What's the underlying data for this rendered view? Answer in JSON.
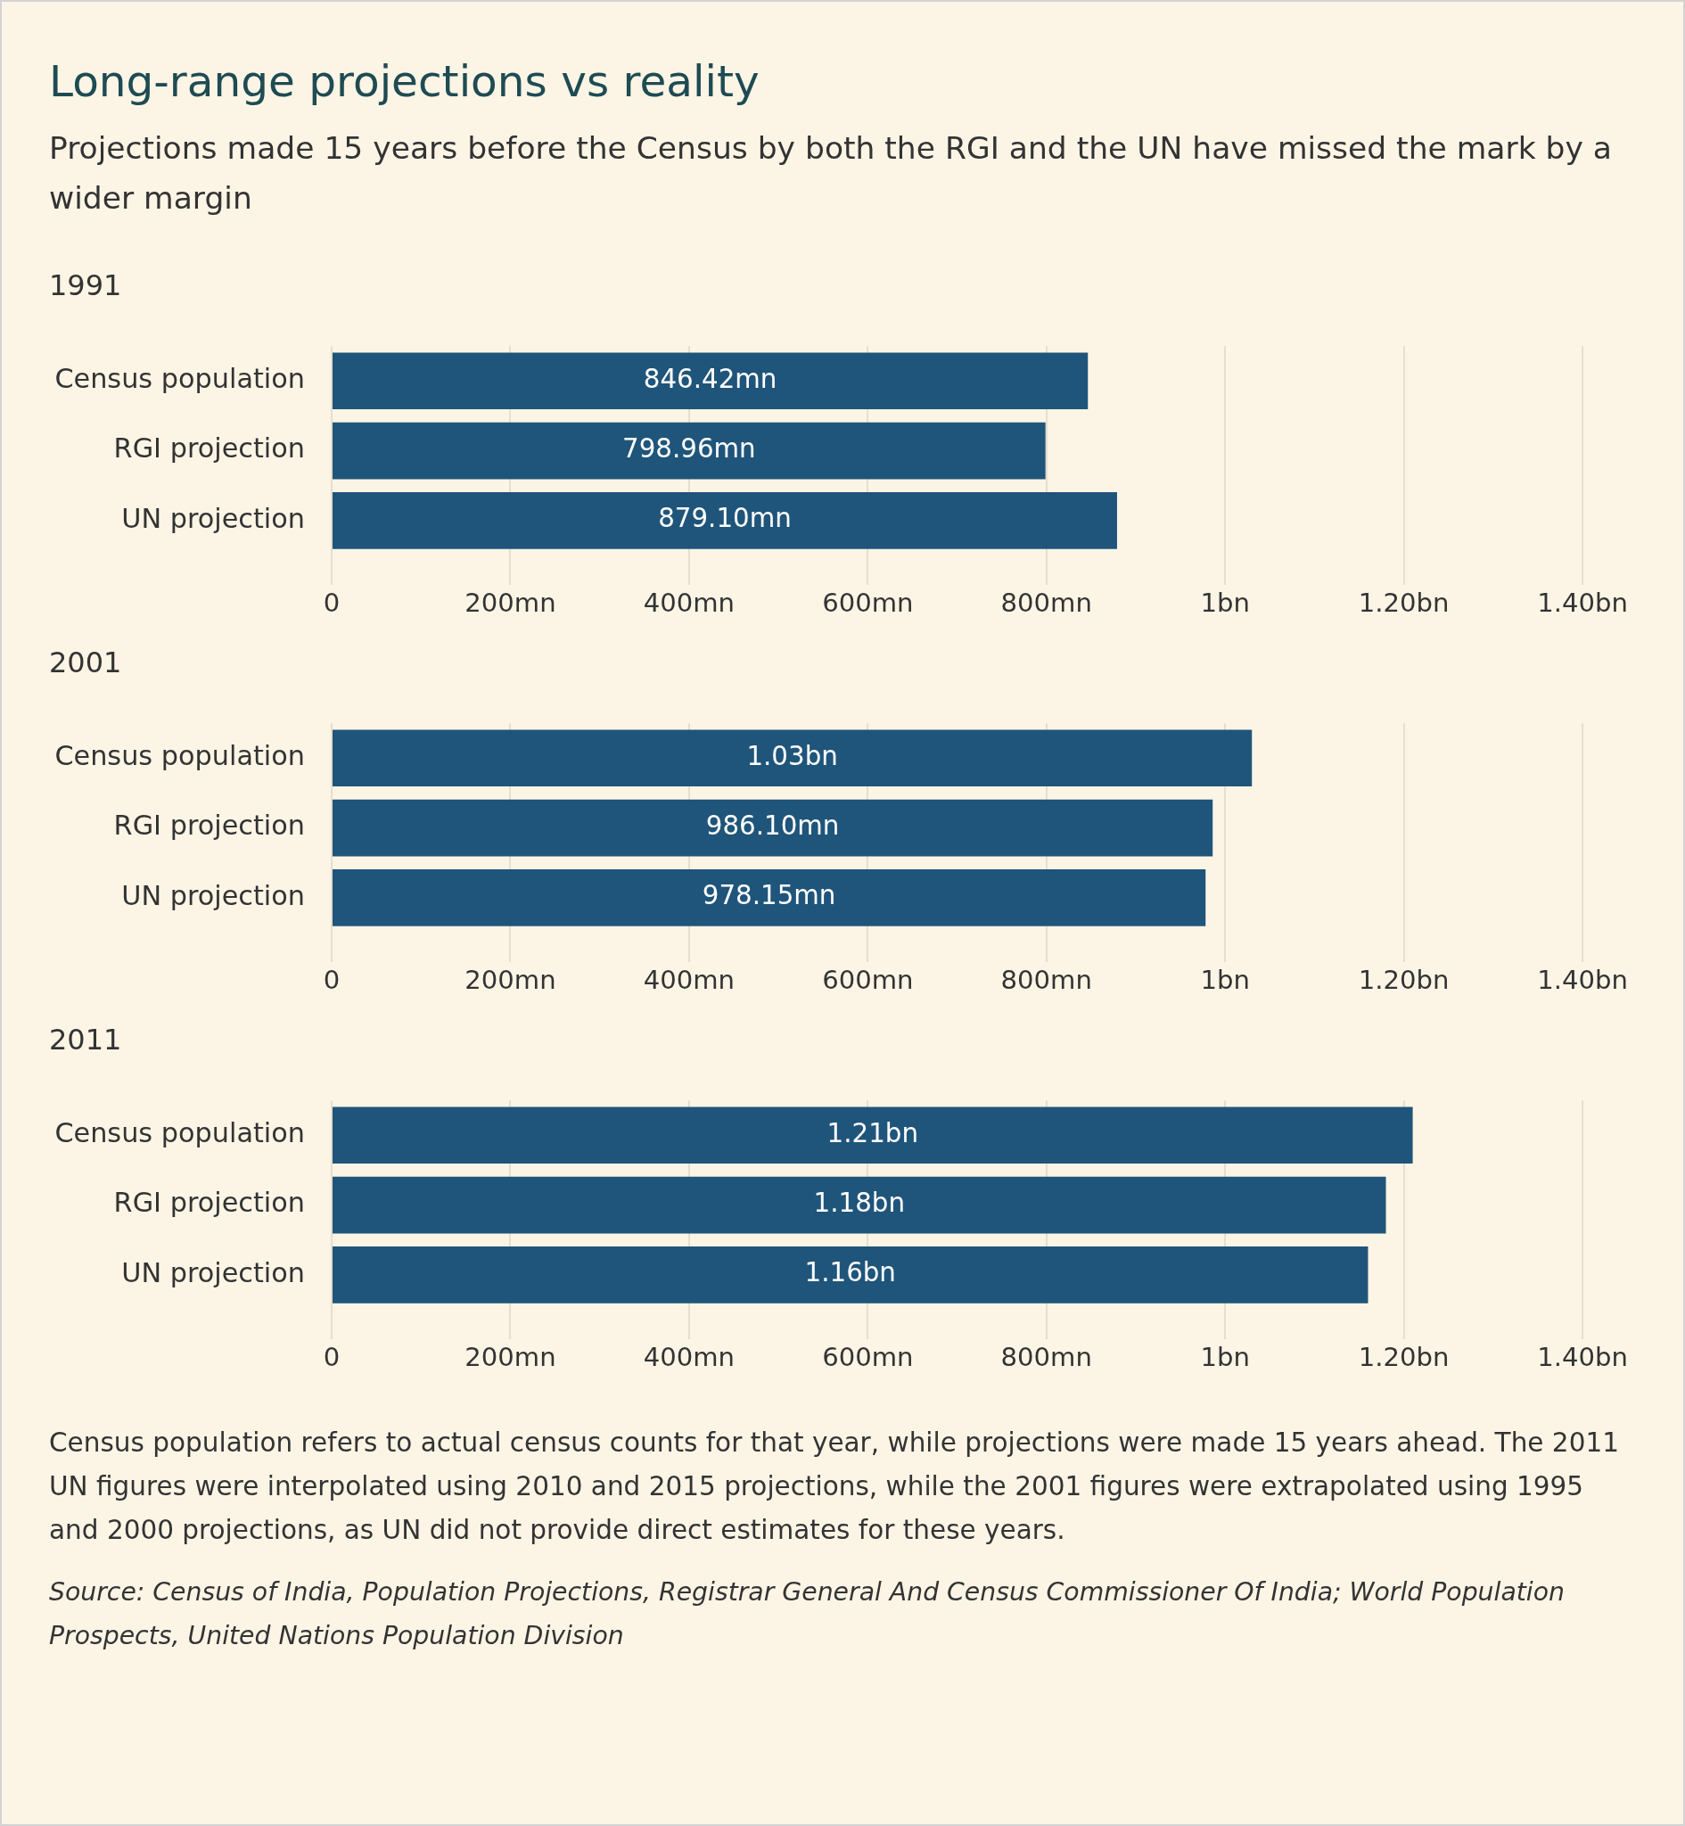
{
  "chart_data": [
    {
      "type": "other",
      "title": "Long-range projections vs reality",
      "subtitle": "Projections made 15 years before the Census by both the RGI and the UN have missed the mark by a wider margin"
    },
    {
      "type": "bar",
      "title": "1991",
      "orientation": "horizontal",
      "categories": [
        "Census population",
        "RGI projection",
        "UN projection"
      ],
      "values": [
        846420000,
        798960000,
        879100000
      ],
      "value_labels": [
        "846.42mn",
        "798.96mn",
        "879.10mn"
      ],
      "color": "#1f557a",
      "xlim": [
        0,
        1400000000
      ],
      "xticks": [
        {
          "value": 0,
          "label": "0"
        },
        {
          "value": 200000000,
          "label": "200mn"
        },
        {
          "value": 400000000,
          "label": "400mn"
        },
        {
          "value": 600000000,
          "label": "600mn"
        },
        {
          "value": 800000000,
          "label": "800mn"
        },
        {
          "value": 1000000000,
          "label": "1bn"
        },
        {
          "value": 1200000000,
          "label": "1.20bn"
        },
        {
          "value": 1400000000,
          "label": "1.40bn"
        }
      ],
      "grid": "x"
    },
    {
      "type": "bar",
      "title": "2001",
      "orientation": "horizontal",
      "categories": [
        "Census population",
        "RGI projection",
        "UN projection"
      ],
      "values": [
        1030000000,
        986100000,
        978150000
      ],
      "value_labels": [
        "1.03bn",
        "986.10mn",
        "978.15mn"
      ],
      "color": "#1f557a",
      "xlim": [
        0,
        1400000000
      ],
      "xticks": [
        {
          "value": 0,
          "label": "0"
        },
        {
          "value": 200000000,
          "label": "200mn"
        },
        {
          "value": 400000000,
          "label": "400mn"
        },
        {
          "value": 600000000,
          "label": "600mn"
        },
        {
          "value": 800000000,
          "label": "800mn"
        },
        {
          "value": 1000000000,
          "label": "1bn"
        },
        {
          "value": 1200000000,
          "label": "1.20bn"
        },
        {
          "value": 1400000000,
          "label": "1.40bn"
        }
      ],
      "grid": "x"
    },
    {
      "type": "bar",
      "title": "2011",
      "orientation": "horizontal",
      "categories": [
        "Census population",
        "RGI projection",
        "UN projection"
      ],
      "values": [
        1210000000,
        1180000000,
        1160000000
      ],
      "value_labels": [
        "1.21bn",
        "1.18bn",
        "1.16bn"
      ],
      "color": "#1f557a",
      "xlim": [
        0,
        1400000000
      ],
      "xticks": [
        {
          "value": 0,
          "label": "0"
        },
        {
          "value": 200000000,
          "label": "200mn"
        },
        {
          "value": 400000000,
          "label": "400mn"
        },
        {
          "value": 600000000,
          "label": "600mn"
        },
        {
          "value": 800000000,
          "label": "800mn"
        },
        {
          "value": 1000000000,
          "label": "1bn"
        },
        {
          "value": 1200000000,
          "label": "1.20bn"
        },
        {
          "value": 1400000000,
          "label": "1.40bn"
        }
      ],
      "grid": "x",
      "annotations": [
        "Census population refers to actual census counts for that year, while projections were made 15 years ahead. The 2011 UN figures were interpolated using 2010 and 2015 projections, while the 2001 figures were extrapolated using 1995 and 2000 projections, as UN did not provide direct estimates for these years.",
        "Source: Census of India, Population Projections, Registrar General And Census Commissioner Of India; World Population Prospects, United Nations Population Division"
      ]
    }
  ]
}
